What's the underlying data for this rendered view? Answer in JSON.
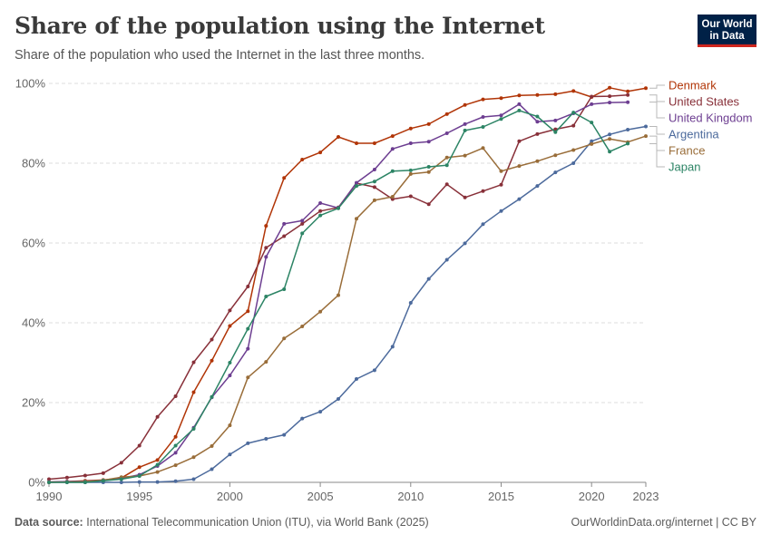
{
  "header": {
    "title": "Share of the population using the Internet",
    "subtitle": "Share of the population who used the Internet in the last three months."
  },
  "logo": {
    "line1": "Our World",
    "line2": "in Data"
  },
  "footer": {
    "source_label": "Data source:",
    "source_text": "International Telecommunication Union (ITU), via World Bank (2025)",
    "right": "OurWorldinData.org/internet | CC BY"
  },
  "chart_data": {
    "type": "line",
    "title": "Share of the population using the Internet",
    "subtitle": "Share of the population who used the Internet in the last three months.",
    "xlabel": "",
    "ylabel": "",
    "xlim": [
      1990,
      2023
    ],
    "ylim": [
      0,
      100
    ],
    "x_ticks": [
      1990,
      1995,
      2000,
      2005,
      2010,
      2015,
      2020,
      2023
    ],
    "y_ticks": [
      0,
      20,
      40,
      60,
      80,
      100
    ],
    "y_tick_labels": [
      "0%",
      "20%",
      "40%",
      "60%",
      "80%",
      "100%"
    ],
    "grid": "horizontal-dashed",
    "legend": "right",
    "series": [
      {
        "name": "Denmark",
        "color": "#b13507",
        "points": [
          [
            1990,
            0.1
          ],
          [
            1991,
            0.2
          ],
          [
            1992,
            0.4
          ],
          [
            1993,
            0.6
          ],
          [
            1994,
            1.1
          ],
          [
            1995,
            3.8
          ],
          [
            1996,
            5.6
          ],
          [
            1997,
            11.4
          ],
          [
            1998,
            22.6
          ],
          [
            1999,
            30.5
          ],
          [
            2000,
            39.2
          ],
          [
            2001,
            42.9
          ],
          [
            2002,
            64.3
          ],
          [
            2003,
            76.3
          ],
          [
            2004,
            80.9
          ],
          [
            2005,
            82.7
          ],
          [
            2006,
            86.6
          ],
          [
            2007,
            85.0
          ],
          [
            2008,
            85.0
          ],
          [
            2009,
            86.8
          ],
          [
            2010,
            88.7
          ],
          [
            2011,
            89.8
          ],
          [
            2012,
            92.3
          ],
          [
            2013,
            94.6
          ],
          [
            2014,
            96.0
          ],
          [
            2015,
            96.3
          ],
          [
            2016,
            97.0
          ],
          [
            2017,
            97.1
          ],
          [
            2018,
            97.3
          ],
          [
            2019,
            98.1
          ],
          [
            2020,
            96.6
          ],
          [
            2021,
            98.9
          ],
          [
            2022,
            98.0
          ],
          [
            2023,
            98.8
          ]
        ]
      },
      {
        "name": "United States",
        "color": "#883039",
        "points": [
          [
            1990,
            0.8
          ],
          [
            1991,
            1.2
          ],
          [
            1992,
            1.7
          ],
          [
            1993,
            2.3
          ],
          [
            1994,
            4.9
          ],
          [
            1995,
            9.2
          ],
          [
            1996,
            16.4
          ],
          [
            1997,
            21.6
          ],
          [
            1998,
            30.1
          ],
          [
            1999,
            35.8
          ],
          [
            2000,
            43.1
          ],
          [
            2001,
            49.1
          ],
          [
            2002,
            58.8
          ],
          [
            2003,
            61.7
          ],
          [
            2004,
            64.8
          ],
          [
            2005,
            68.0
          ],
          [
            2006,
            68.9
          ],
          [
            2007,
            75.0
          ],
          [
            2008,
            74.0
          ],
          [
            2009,
            71.0
          ],
          [
            2010,
            71.7
          ],
          [
            2011,
            69.7
          ],
          [
            2012,
            74.7
          ],
          [
            2013,
            71.4
          ],
          [
            2014,
            73.0
          ],
          [
            2015,
            74.6
          ],
          [
            2016,
            85.5
          ],
          [
            2017,
            87.3
          ],
          [
            2018,
            88.5
          ],
          [
            2019,
            89.4
          ],
          [
            2020,
            96.7
          ],
          [
            2021,
            96.8
          ],
          [
            2022,
            97.1
          ]
        ]
      },
      {
        "name": "United Kingdom",
        "color": "#6d3e91",
        "points": [
          [
            1990,
            0.1
          ],
          [
            1991,
            0.2
          ],
          [
            1992,
            0.3
          ],
          [
            1993,
            0.5
          ],
          [
            1994,
            1.0
          ],
          [
            1995,
            1.9
          ],
          [
            1996,
            4.1
          ],
          [
            1997,
            7.4
          ],
          [
            1998,
            13.7
          ],
          [
            1999,
            21.3
          ],
          [
            2000,
            26.8
          ],
          [
            2001,
            33.5
          ],
          [
            2002,
            56.5
          ],
          [
            2003,
            64.8
          ],
          [
            2004,
            65.6
          ],
          [
            2005,
            70.0
          ],
          [
            2006,
            68.8
          ],
          [
            2007,
            75.1
          ],
          [
            2008,
            78.4
          ],
          [
            2009,
            83.6
          ],
          [
            2010,
            85.0
          ],
          [
            2011,
            85.4
          ],
          [
            2012,
            87.5
          ],
          [
            2013,
            89.8
          ],
          [
            2014,
            91.6
          ],
          [
            2015,
            92.0
          ],
          [
            2016,
            94.8
          ],
          [
            2017,
            90.4
          ],
          [
            2018,
            90.7
          ],
          [
            2019,
            92.5
          ],
          [
            2020,
            94.8
          ],
          [
            2021,
            95.2
          ],
          [
            2022,
            95.3
          ]
        ]
      },
      {
        "name": "Argentina",
        "color": "#4c6a9c",
        "points": [
          [
            1990,
            0.0
          ],
          [
            1991,
            0.0
          ],
          [
            1992,
            0.0
          ],
          [
            1993,
            0.0
          ],
          [
            1994,
            0.0
          ],
          [
            1995,
            0.1
          ],
          [
            1996,
            0.1
          ],
          [
            1997,
            0.3
          ],
          [
            1998,
            0.8
          ],
          [
            1999,
            3.3
          ],
          [
            2000,
            7.0
          ],
          [
            2001,
            9.8
          ],
          [
            2002,
            10.9
          ],
          [
            2003,
            11.9
          ],
          [
            2004,
            16.0
          ],
          [
            2005,
            17.7
          ],
          [
            2006,
            20.9
          ],
          [
            2007,
            25.9
          ],
          [
            2008,
            28.1
          ],
          [
            2009,
            34.0
          ],
          [
            2010,
            45.0
          ],
          [
            2011,
            51.0
          ],
          [
            2012,
            55.8
          ],
          [
            2013,
            59.9
          ],
          [
            2014,
            64.7
          ],
          [
            2015,
            68.0
          ],
          [
            2016,
            71.0
          ],
          [
            2017,
            74.3
          ],
          [
            2018,
            77.7
          ],
          [
            2019,
            80.0
          ],
          [
            2020,
            85.5
          ],
          [
            2021,
            87.2
          ],
          [
            2022,
            88.4
          ],
          [
            2023,
            89.2
          ]
        ]
      },
      {
        "name": "France",
        "color": "#996d39",
        "points": [
          [
            1990,
            0.0
          ],
          [
            1991,
            0.1
          ],
          [
            1992,
            0.2
          ],
          [
            1993,
            0.5
          ],
          [
            1994,
            1.3
          ],
          [
            1995,
            1.6
          ],
          [
            1996,
            2.6
          ],
          [
            1997,
            4.3
          ],
          [
            1998,
            6.3
          ],
          [
            1999,
            9.1
          ],
          [
            2000,
            14.3
          ],
          [
            2001,
            26.3
          ],
          [
            2002,
            30.2
          ],
          [
            2003,
            36.1
          ],
          [
            2004,
            39.1
          ],
          [
            2005,
            42.8
          ],
          [
            2006,
            46.9
          ],
          [
            2007,
            66.1
          ],
          [
            2008,
            70.7
          ],
          [
            2009,
            71.6
          ],
          [
            2010,
            77.3
          ],
          [
            2011,
            77.8
          ],
          [
            2012,
            81.4
          ],
          [
            2013,
            81.9
          ],
          [
            2014,
            83.8
          ],
          [
            2015,
            78.0
          ],
          [
            2016,
            79.3
          ],
          [
            2017,
            80.5
          ],
          [
            2018,
            82.0
          ],
          [
            2019,
            83.3
          ],
          [
            2020,
            84.8
          ],
          [
            2021,
            86.1
          ],
          [
            2022,
            85.3
          ],
          [
            2023,
            86.8
          ]
        ]
      },
      {
        "name": "Japan",
        "color": "#2c8465",
        "points": [
          [
            1990,
            0.0
          ],
          [
            1991,
            0.0
          ],
          [
            1992,
            0.0
          ],
          [
            1993,
            0.4
          ],
          [
            1994,
            0.8
          ],
          [
            1995,
            1.6
          ],
          [
            1996,
            4.4
          ],
          [
            1997,
            9.2
          ],
          [
            1998,
            13.4
          ],
          [
            1999,
            21.4
          ],
          [
            2000,
            30.0
          ],
          [
            2001,
            38.5
          ],
          [
            2002,
            46.6
          ],
          [
            2003,
            48.4
          ],
          [
            2004,
            62.4
          ],
          [
            2005,
            66.9
          ],
          [
            2006,
            68.7
          ],
          [
            2007,
            74.3
          ],
          [
            2008,
            75.4
          ],
          [
            2009,
            78.0
          ],
          [
            2010,
            78.2
          ],
          [
            2011,
            79.1
          ],
          [
            2012,
            79.5
          ],
          [
            2013,
            88.2
          ],
          [
            2014,
            89.1
          ],
          [
            2015,
            91.1
          ],
          [
            2016,
            93.2
          ],
          [
            2017,
            91.7
          ],
          [
            2018,
            87.8
          ],
          [
            2019,
            92.7
          ],
          [
            2020,
            90.2
          ],
          [
            2021,
            82.9
          ],
          [
            2022,
            84.9
          ]
        ]
      }
    ]
  }
}
